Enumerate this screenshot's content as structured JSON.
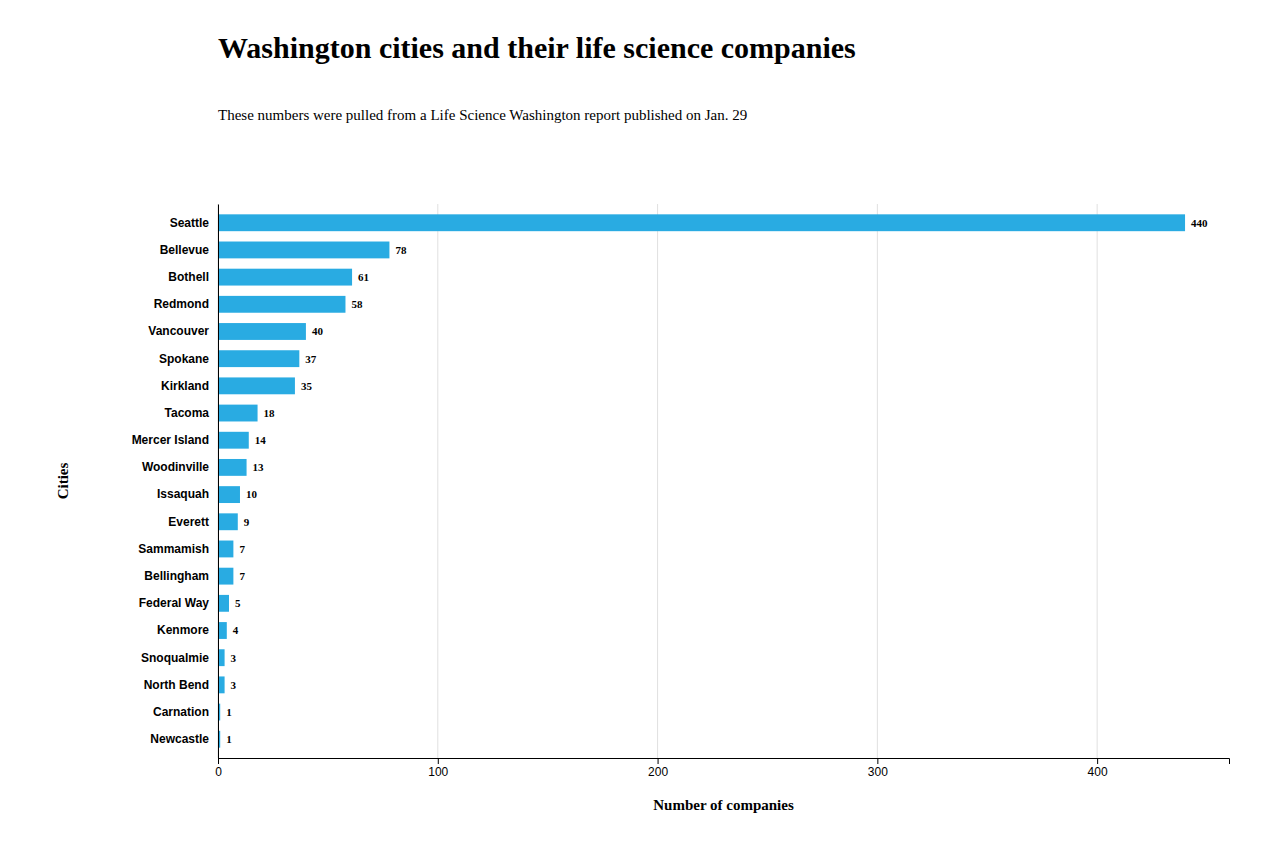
{
  "chart_data": {
    "type": "bar",
    "orientation": "horizontal",
    "title": "Washington cities and their life science companies",
    "subtitle": "These numbers were pulled from a Life Science Washington report published on Jan. 29",
    "xlabel": "Number of companies",
    "ylabel": "Cities",
    "categories": [
      "Seattle",
      "Bellevue",
      "Bothell",
      "Redmond",
      "Vancouver",
      "Spokane",
      "Kirkland",
      "Tacoma",
      "Mercer Island",
      "Woodinville",
      "Issaquah",
      "Everett",
      "Sammamish",
      "Bellingham",
      "Federal Way",
      "Kenmore",
      "Snoqualmie",
      "North Bend",
      "Carnation",
      "Newcastle"
    ],
    "values": [
      440,
      78,
      61,
      58,
      40,
      37,
      35,
      18,
      14,
      13,
      10,
      9,
      7,
      7,
      5,
      4,
      3,
      3,
      1,
      1
    ],
    "color": "#29ABE2",
    "xlim": [
      0,
      460
    ],
    "xticks": [
      0,
      100,
      200,
      300,
      400
    ],
    "grid": true,
    "data_labels": true
  }
}
